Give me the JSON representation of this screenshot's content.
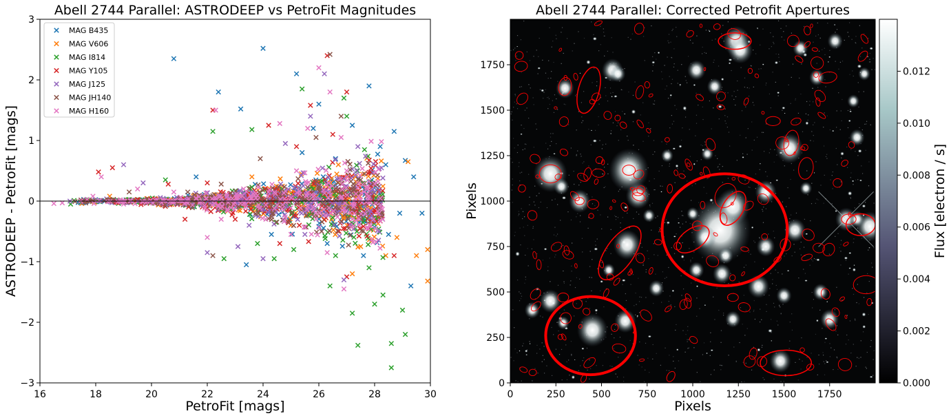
{
  "chart_data": [
    {
      "type": "scatter",
      "title": "Abell 2744 Parallel: ASTRODEEP vs PetroFit Magnitudes",
      "xlabel": "PetroFit [mags]",
      "ylabel": "ASTRODEEP - PetroFit [mags]",
      "xlim": [
        16,
        30
      ],
      "ylim": [
        -3,
        3
      ],
      "xticks": [
        16,
        18,
        20,
        22,
        24,
        26,
        28,
        30
      ],
      "yticks": [
        -3,
        -2,
        -1,
        0,
        1,
        2,
        3
      ],
      "grid": false,
      "legend_position": "top-left",
      "marker": "x",
      "reference_line_y": 0,
      "series": [
        {
          "name": "MAG B435",
          "color": "#1f77b4",
          "points": [
            [
              20.8,
              2.35
            ],
            [
              24.0,
              2.52
            ],
            [
              22.4,
              1.8
            ],
            [
              23.2,
              1.52
            ],
            [
              25.2,
              2.1
            ],
            [
              27.8,
              1.9
            ],
            [
              28.7,
              1.15
            ],
            [
              29.1,
              0.67
            ],
            [
              29.4,
              0.4
            ],
            [
              28.2,
              0.9
            ],
            [
              27.2,
              1.25
            ],
            [
              26.0,
              1.6
            ],
            [
              25.4,
              0.8
            ],
            [
              28.9,
              -0.2
            ],
            [
              29.7,
              -0.2
            ],
            [
              29.3,
              -1.4
            ],
            [
              28.5,
              -0.55
            ],
            [
              23.4,
              -1.05
            ],
            [
              24.3,
              -0.55
            ],
            [
              21.6,
              0.4
            ],
            [
              27.9,
              0.35
            ],
            [
              28.4,
              0.6
            ],
            [
              26.6,
              0.7
            ],
            [
              25.8,
              1.2
            ],
            [
              26.3,
              -0.7
            ],
            [
              27.6,
              -0.9
            ]
          ]
        },
        {
          "name": "MAG V606",
          "color": "#ff7f0e",
          "points": [
            [
              17.5,
              -0.04
            ],
            [
              18.5,
              0.08
            ],
            [
              29.2,
              0.65
            ],
            [
              29.9,
              -1.32
            ],
            [
              29.9,
              -0.8
            ],
            [
              28.8,
              -0.6
            ],
            [
              28.0,
              -0.3
            ],
            [
              27.5,
              -0.75
            ],
            [
              26.7,
              0.6
            ],
            [
              28.4,
              -0.9
            ],
            [
              25.0,
              -0.4
            ],
            [
              27.2,
              -1.2
            ],
            [
              29.5,
              -0.9
            ],
            [
              23.6,
              0.4
            ],
            [
              26.2,
              -0.3
            ]
          ]
        },
        {
          "name": "MAG I814",
          "color": "#2ca02c",
          "points": [
            [
              17.1,
              -0.05
            ],
            [
              20.5,
              0.35
            ],
            [
              22.2,
              1.15
            ],
            [
              23.6,
              1.18
            ],
            [
              25.4,
              1.85
            ],
            [
              26.9,
              1.7
            ],
            [
              28.6,
              -2.75
            ],
            [
              27.4,
              -2.38
            ],
            [
              28.6,
              -2.35
            ],
            [
              29.1,
              -2.2
            ],
            [
              28.0,
              -1.7
            ],
            [
              27.2,
              -1.85
            ],
            [
              28.3,
              -1.55
            ],
            [
              27.8,
              -1.1
            ],
            [
              26.4,
              -1.4
            ],
            [
              25.1,
              -0.8
            ],
            [
              24.4,
              -0.95
            ],
            [
              22.6,
              -0.95
            ],
            [
              23.8,
              -0.7
            ],
            [
              26.6,
              -0.9
            ],
            [
              29.0,
              -1.8
            ],
            [
              27.0,
              1.4
            ]
          ]
        },
        {
          "name": "MAG Y105",
          "color": "#d62728",
          "points": [
            [
              18.1,
              0.48
            ],
            [
              18.6,
              0.55
            ],
            [
              20.6,
              0.28
            ],
            [
              22.0,
              0.3
            ],
            [
              22.2,
              1.5
            ],
            [
              24.2,
              1.25
            ],
            [
              26.3,
              2.4
            ],
            [
              27.0,
              1.8
            ],
            [
              25.7,
              1.58
            ],
            [
              26.5,
              1.1
            ],
            [
              25.2,
              0.9
            ],
            [
              21.2,
              -0.3
            ],
            [
              24.6,
              -0.7
            ],
            [
              27.0,
              -1.25
            ],
            [
              28.7,
              -0.9
            ],
            [
              23.0,
              -0.3
            ]
          ]
        },
        {
          "name": "MAG J125",
          "color": "#9467bd",
          "points": [
            [
              19.0,
              0.6
            ],
            [
              19.7,
              0.3
            ],
            [
              22.0,
              -0.85
            ],
            [
              23.5,
              -0.4
            ],
            [
              24.0,
              -0.95
            ],
            [
              25.7,
              1.4
            ],
            [
              26.2,
              2.1
            ],
            [
              26.9,
              -1.3
            ],
            [
              27.4,
              0.9
            ],
            [
              24.8,
              0.95
            ],
            [
              23.1,
              -0.75
            ],
            [
              25.5,
              -0.55
            ]
          ]
        },
        {
          "name": "MAG JH140",
          "color": "#8c564b",
          "points": [
            [
              18.5,
              0.02
            ],
            [
              19.2,
              0.15
            ],
            [
              21.3,
              0.15
            ],
            [
              22.5,
              0.28
            ],
            [
              26.4,
              2.42
            ],
            [
              26.8,
              1.4
            ],
            [
              27.5,
              0.35
            ],
            [
              25.9,
              1.05
            ],
            [
              24.9,
              -0.35
            ],
            [
              26.1,
              -0.5
            ],
            [
              22.2,
              -0.9
            ],
            [
              23.9,
              0.7
            ]
          ]
        },
        {
          "name": "MAG H160",
          "color": "#e377c2",
          "points": [
            [
              16.5,
              -0.04
            ],
            [
              16.8,
              -0.03
            ],
            [
              17.9,
              0.08
            ],
            [
              18.2,
              0.4
            ],
            [
              19.5,
              0.2
            ],
            [
              20.8,
              0.15
            ],
            [
              22.3,
              1.5
            ],
            [
              24.6,
              1.28
            ],
            [
              26.0,
              2.2
            ],
            [
              26.4,
              1.8
            ],
            [
              25.6,
              1.2
            ],
            [
              26.8,
              1.05
            ],
            [
              27.0,
              0.5
            ],
            [
              25.2,
              0.5
            ],
            [
              23.3,
              0.2
            ],
            [
              24.1,
              -0.3
            ],
            [
              25.0,
              -0.55
            ],
            [
              26.3,
              -0.85
            ],
            [
              27.2,
              -0.3
            ],
            [
              22.5,
              -0.3
            ],
            [
              23.8,
              -0.1
            ],
            [
              21.6,
              0.05
            ],
            [
              20.2,
              0.02
            ],
            [
              19.0,
              -0.05
            ],
            [
              26.9,
              -1.45
            ],
            [
              22.0,
              -0.6
            ]
          ]
        }
      ]
    },
    {
      "type": "heatmap",
      "title": "Abell 2744 Parallel: Corrected Petrofit Apertures",
      "xlabel": "Pixels",
      "ylabel": "Pixels",
      "xlim": [
        0,
        2000
      ],
      "ylim": [
        0,
        2000
      ],
      "xticks": [
        0,
        250,
        500,
        750,
        1000,
        1250,
        1500,
        1750
      ],
      "yticks": [
        0,
        250,
        500,
        750,
        1000,
        1250,
        1500,
        1750
      ],
      "grid": false,
      "colormap": "bone",
      "colorbar": {
        "label": "Flux [electron / s]",
        "range": [
          0,
          0.014
        ],
        "ticks": [
          "0.000",
          "0.002",
          "0.004",
          "0.006",
          "0.008",
          "0.010",
          "0.012"
        ],
        "tick_values": [
          0,
          0.002,
          0.004,
          0.006,
          0.008,
          0.01,
          0.012
        ]
      },
      "aperture_color": "#ff0000",
      "sources": [
        [
          1150,
          840,
          40
        ],
        [
          1220,
          970,
          22
        ],
        [
          1070,
          800,
          14
        ],
        [
          640,
          760,
          18
        ],
        [
          630,
          340,
          14
        ],
        [
          290,
          330,
          8
        ],
        [
          450,
          290,
          20
        ],
        [
          650,
          1170,
          26
        ],
        [
          700,
          1030,
          16
        ],
        [
          220,
          1150,
          22
        ],
        [
          1530,
          1290,
          18
        ],
        [
          1840,
          900,
          14
        ],
        [
          1970,
          860,
          18
        ],
        [
          1240,
          1880,
          18
        ],
        [
          1260,
          1830,
          16
        ],
        [
          1400,
          1050,
          14
        ],
        [
          1400,
          750,
          12
        ],
        [
          1360,
          530,
          14
        ],
        [
          1500,
          480,
          10
        ],
        [
          1680,
          1680,
          10
        ],
        [
          1560,
          840,
          14
        ],
        [
          560,
          1720,
          14
        ],
        [
          590,
          1700,
          10
        ],
        [
          1590,
          1840,
          10
        ],
        [
          1020,
          1720,
          12
        ],
        [
          1120,
          1630,
          10
        ],
        [
          380,
          1000,
          14
        ],
        [
          1220,
          350,
          10
        ],
        [
          1480,
          120,
          14
        ],
        [
          1160,
          600,
          12
        ],
        [
          1020,
          620,
          10
        ],
        [
          1700,
          500,
          10
        ],
        [
          1750,
          350,
          12
        ],
        [
          1900,
          900,
          10
        ],
        [
          1900,
          1350,
          10
        ],
        [
          300,
          1620,
          12
        ],
        [
          280,
          1080,
          10
        ],
        [
          220,
          450,
          14
        ],
        [
          120,
          400,
          10
        ],
        [
          1180,
          700,
          10
        ],
        [
          860,
          1250,
          8
        ],
        [
          1080,
          1260,
          8
        ],
        [
          1780,
          1880,
          10
        ],
        [
          1940,
          1700,
          8
        ],
        [
          1000,
          930,
          8
        ],
        [
          760,
          920,
          8
        ],
        [
          1880,
          1550,
          8
        ],
        [
          1620,
          1070,
          8
        ],
        [
          800,
          520,
          10
        ],
        [
          540,
          620,
          8
        ]
      ],
      "apertures": [
        [
          1175,
          842,
          343,
          308,
          0
        ],
        [
          1000,
          790,
          102,
          57,
          -35
        ],
        [
          600,
          715,
          171,
          77,
          -55
        ],
        [
          440,
          260,
          246,
          215,
          0
        ],
        [
          1220,
          960,
          102,
          57,
          -60
        ],
        [
          430,
          1610,
          130,
          57,
          -75
        ],
        [
          1230,
          1880,
          90,
          45,
          0
        ],
        [
          1540,
          1320,
          70,
          40,
          -80
        ],
        [
          1180,
          1030,
          70,
          55,
          -60
        ],
        [
          1510,
          110,
          140,
          70,
          0
        ],
        [
          1740,
          1680,
          50,
          30,
          -10
        ],
        [
          1440,
          1440,
          40,
          25,
          0
        ],
        [
          1855,
          900,
          40,
          28,
          0
        ],
        [
          1920,
          870,
          80,
          60,
          0
        ],
        [
          1950,
          540,
          70,
          50,
          0
        ],
        [
          1620,
          1180,
          60,
          40,
          -80
        ],
        [
          300,
          1630,
          50,
          35,
          -80
        ],
        [
          220,
          1150,
          60,
          50,
          0
        ],
        [
          290,
          470,
          30,
          25,
          0
        ],
        [
          880,
          35,
          30,
          20,
          -60
        ],
        [
          1220,
          470,
          30,
          22,
          0
        ],
        [
          700,
          1050,
          30,
          20,
          0
        ],
        [
          380,
          1000,
          25,
          20,
          0
        ],
        [
          650,
          1170,
          35,
          28,
          0
        ]
      ],
      "small_ellipses": 160
    }
  ]
}
